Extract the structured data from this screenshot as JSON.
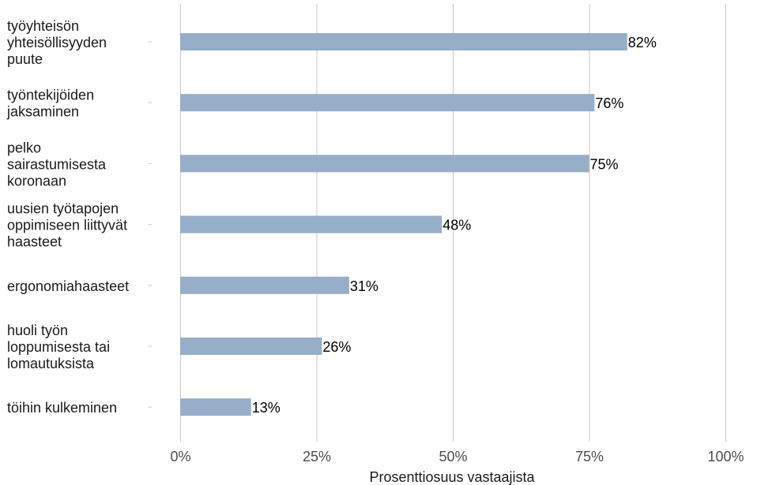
{
  "chart_data": {
    "type": "bar",
    "orientation": "horizontal",
    "categories": [
      "työyhteisön yhteisöllisyyden puute",
      "työntekijöiden jaksaminen",
      "pelko sairastumisesta koronaan",
      "uusien työtapojen oppimiseen liittyvät haasteet",
      "ergonomiahaasteet",
      "huoli työn loppumisesta tai lomautuksista",
      "töihin kulkeminen"
    ],
    "category_lines": [
      [
        "työyhteisön",
        "yhteisöllisyyden",
        "puute"
      ],
      [
        "työntekijöiden",
        "jaksaminen"
      ],
      [
        "pelko",
        "sairastumisesta",
        "koronaan"
      ],
      [
        "uusien työtapojen",
        "oppimiseen liittyvät",
        "haasteet"
      ],
      [
        "ergonomiahaasteet"
      ],
      [
        "huoli työn",
        "loppumisesta tai",
        "lomautuksista"
      ],
      [
        "töihin kulkeminen"
      ]
    ],
    "values": [
      82,
      76,
      75,
      48,
      31,
      26,
      13
    ],
    "value_labels": [
      "82%",
      "76%",
      "75%",
      "48%",
      "31%",
      "26%",
      "13%"
    ],
    "xlim": [
      0,
      100
    ],
    "x_ticks": [
      0,
      25,
      50,
      75,
      100
    ],
    "x_tick_labels": [
      "0%",
      "25%",
      "50%",
      "75%",
      "100%"
    ],
    "xlabel": "Prosenttiosuus vastaajista",
    "ylabel": "",
    "title": "",
    "grid": "vertical",
    "legend": "none",
    "bar_color": "#97aec8",
    "grid_color": "#c8c8c8"
  }
}
